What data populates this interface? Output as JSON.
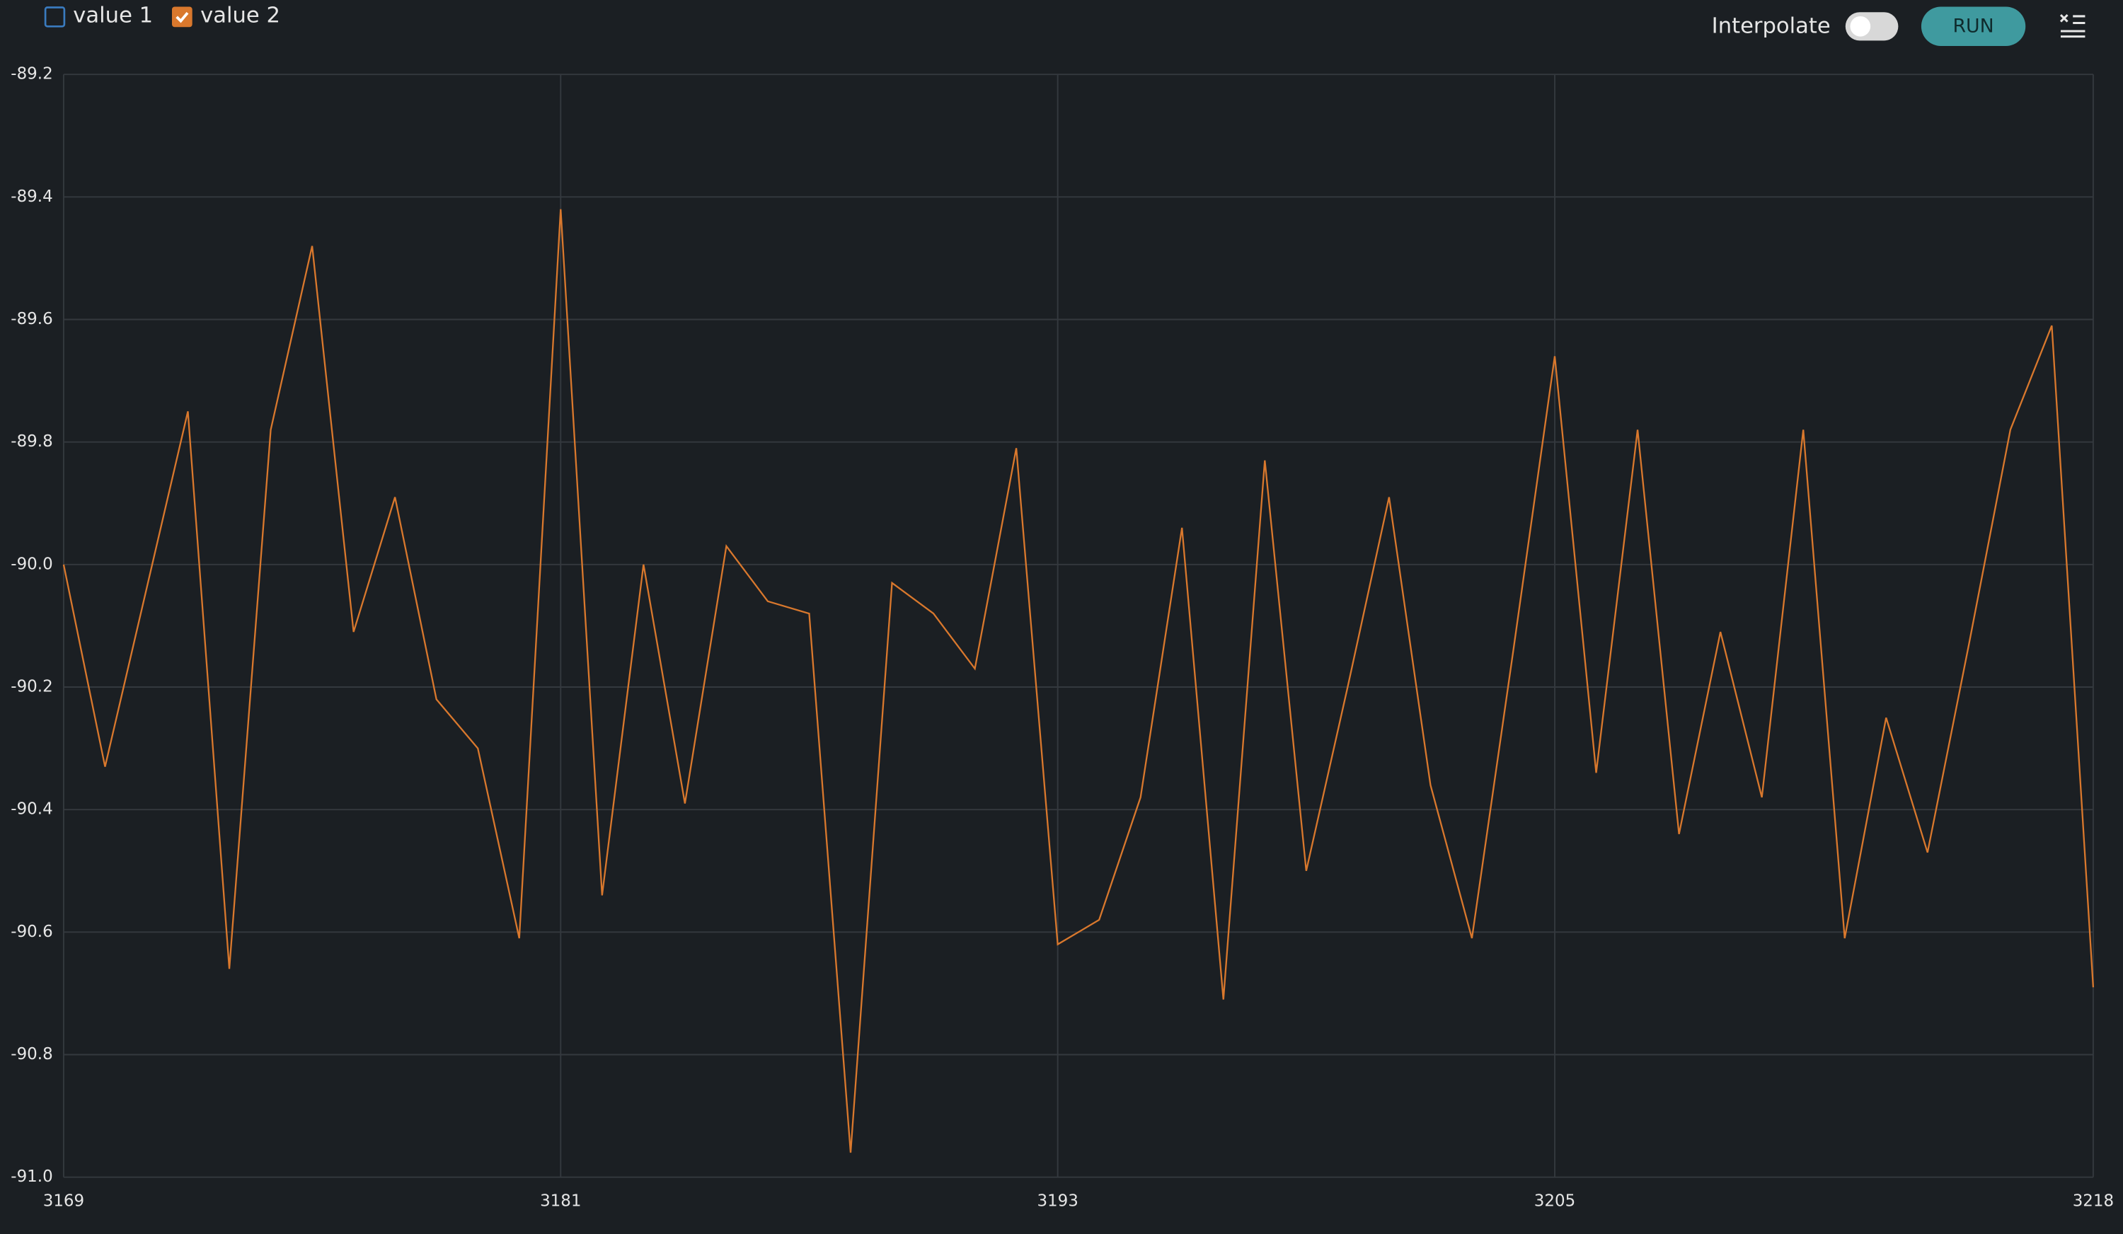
{
  "ui": {
    "legend": [
      {
        "label": "value 1",
        "checked": false,
        "color": "#3a7bbf"
      },
      {
        "label": "value 2",
        "checked": true,
        "color": "#d9782d"
      }
    ],
    "interpolate_label": "Interpolate",
    "interpolate": false,
    "run_label": "RUN"
  },
  "chart_data": {
    "type": "line",
    "x": [
      3169,
      3170,
      3171,
      3172,
      3173,
      3174,
      3175,
      3176,
      3177,
      3178,
      3179,
      3180,
      3181,
      3182,
      3183,
      3184,
      3185,
      3186,
      3187,
      3188,
      3189,
      3190,
      3191,
      3192,
      3193,
      3194,
      3195,
      3196,
      3197,
      3198,
      3199,
      3200,
      3201,
      3202,
      3203,
      3204,
      3205,
      3206,
      3207,
      3208,
      3209,
      3210,
      3211,
      3212,
      3213,
      3214,
      3215,
      3216,
      3217,
      3218
    ],
    "series": [
      {
        "name": "value 2",
        "color": "#d9782d",
        "values": [
          -90.0,
          -90.33,
          -90.04,
          -89.75,
          -90.66,
          -89.78,
          -89.48,
          -90.11,
          -89.89,
          -90.22,
          -90.3,
          -90.61,
          -89.42,
          -90.54,
          -90.0,
          -90.39,
          -89.97,
          -90.06,
          -90.08,
          -90.96,
          -90.03,
          -90.08,
          -90.17,
          -89.81,
          -90.62,
          -90.58,
          -90.38,
          -89.94,
          -90.71,
          -89.83,
          -90.5,
          -90.2,
          -89.89,
          -90.36,
          -90.61,
          -90.14,
          -89.66,
          -90.34,
          -89.78,
          -90.44,
          -90.11,
          -90.38,
          -89.78,
          -90.61,
          -90.25,
          -90.47,
          -90.13,
          -89.78,
          -89.61,
          -90.69
        ]
      }
    ],
    "xlim": [
      3169,
      3218
    ],
    "xticks": [
      3169,
      3181,
      3193,
      3205,
      3218
    ],
    "ylim": [
      -91.0,
      -89.2
    ],
    "yticks": [
      {
        "value": -91.0,
        "label": "-91.0"
      },
      -90.8,
      -90.6,
      -90.4,
      -90.2,
      {
        "value": -90.0,
        "label": "-90.0"
      },
      -89.8,
      -89.6,
      -89.4,
      -89.2
    ],
    "grid": true
  }
}
